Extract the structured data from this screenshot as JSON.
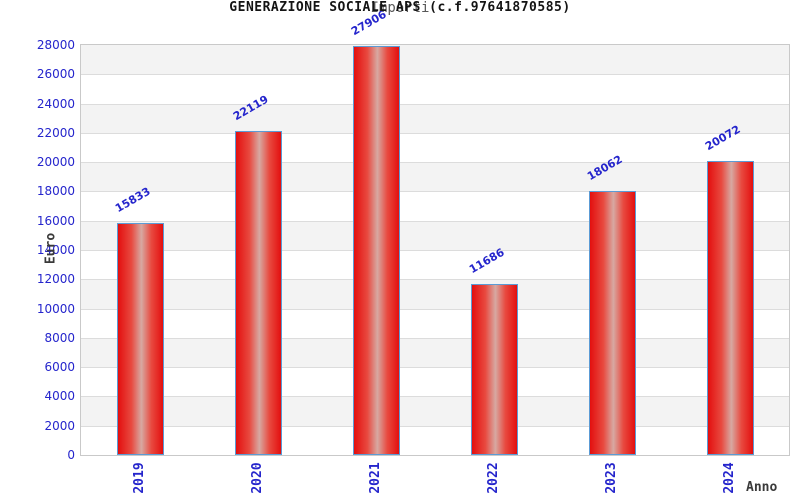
{
  "chart": {
    "title": "GENERAZIONE SOCIALE APS (c.f.97641870585)",
    "subtitle": "Importi",
    "xlabel": "Anno",
    "ylabel": "Euro"
  },
  "chart_data": {
    "type": "bar",
    "categories": [
      "2019",
      "2020",
      "2021",
      "2022",
      "2023",
      "2024"
    ],
    "values": [
      15833,
      22119,
      27906,
      11686,
      18062,
      20072
    ],
    "bar_value_labels": [
      "15833",
      "22119",
      "27906",
      "11686",
      "18062",
      "20072"
    ],
    "title": "GENERAZIONE SOCIALE APS (c.f.97641870585)",
    "subtitle": "Importi",
    "xlabel": "Anno",
    "ylabel": "Euro",
    "ylim": [
      0,
      28000
    ],
    "ytick_step": 2000,
    "ytick_labels": [
      "0",
      "2000",
      "4000",
      "6000",
      "8000",
      "10000",
      "12000",
      "14000",
      "16000",
      "18000",
      "20000",
      "22000",
      "24000",
      "26000",
      "28000"
    ],
    "grid": true,
    "legend_position": "none",
    "band_colors": [
      "#f3f3f3",
      "#ffffff"
    ],
    "gridline_color": "#dcdcdc",
    "plot_border_color": "#c9c9c9",
    "bar_border_color": "#5b9bd5",
    "bar_gradient": [
      "#e30f0f",
      "#e84a40",
      "#d7a9a2",
      "#e84a40",
      "#e30f0f"
    ],
    "tick_text_color": "#2525cc",
    "axis_title_color": "#3a3a3a"
  }
}
